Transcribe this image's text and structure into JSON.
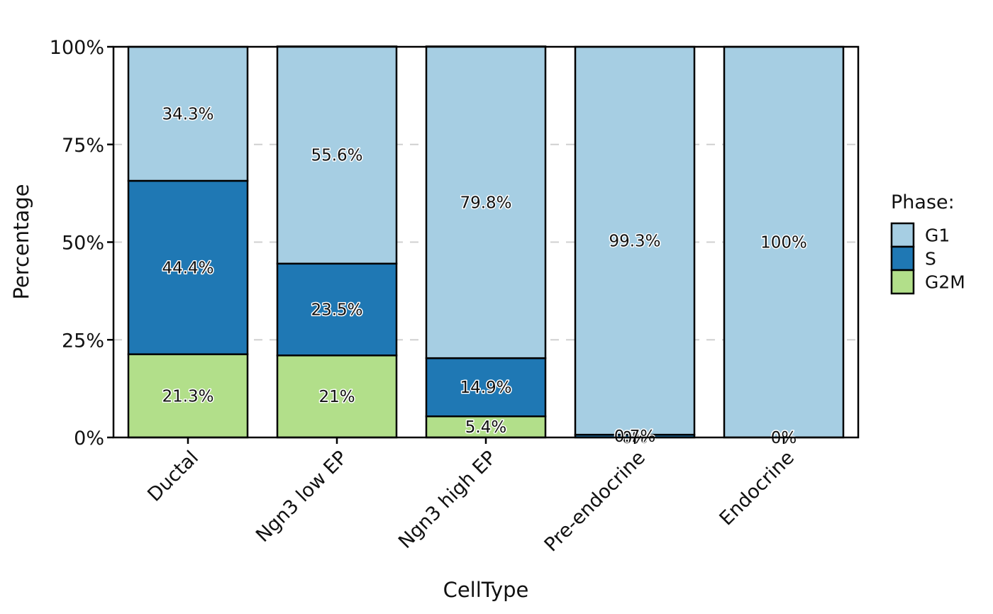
{
  "chart_data": {
    "type": "bar",
    "stacked": true,
    "categories": [
      "Ductal",
      "Ngn3 low EP",
      "Ngn3 high EP",
      "Pre-endocrine",
      "Endocrine"
    ],
    "series": [
      {
        "name": "G2M",
        "color": "#b2df8a",
        "values": [
          21.3,
          21.0,
          5.4,
          0.0,
          0.0
        ],
        "labels": [
          "21.3%",
          "21%",
          "5.4%",
          "0%",
          "0%"
        ]
      },
      {
        "name": "S",
        "color": "#1f78b4",
        "values": [
          44.4,
          23.5,
          14.9,
          0.7,
          0.0
        ],
        "labels": [
          "44.4%",
          "23.5%",
          "14.9%",
          "0.7%",
          "0%"
        ]
      },
      {
        "name": "G1",
        "color": "#a6cee3",
        "values": [
          34.3,
          55.6,
          79.8,
          99.3,
          100.0
        ],
        "labels": [
          "34.3%",
          "55.6%",
          "79.8%",
          "99.3%",
          "100%"
        ]
      }
    ],
    "xlabel": "CellType",
    "ylabel": "Percentage",
    "ylim": [
      0,
      100
    ],
    "yticks": [
      {
        "value": 0,
        "label": "0%"
      },
      {
        "value": 25,
        "label": "25%"
      },
      {
        "value": 50,
        "label": "50%"
      },
      {
        "value": 75,
        "label": "75%"
      },
      {
        "value": 100,
        "label": "100%"
      }
    ],
    "grid": "horizontal-dashed",
    "legend": {
      "title": "Phase:",
      "position": "right",
      "entries": [
        {
          "name": "G1",
          "color": "#a6cee3"
        },
        {
          "name": "S",
          "color": "#1f78b4"
        },
        {
          "name": "G2M",
          "color": "#b2df8a"
        }
      ]
    }
  }
}
